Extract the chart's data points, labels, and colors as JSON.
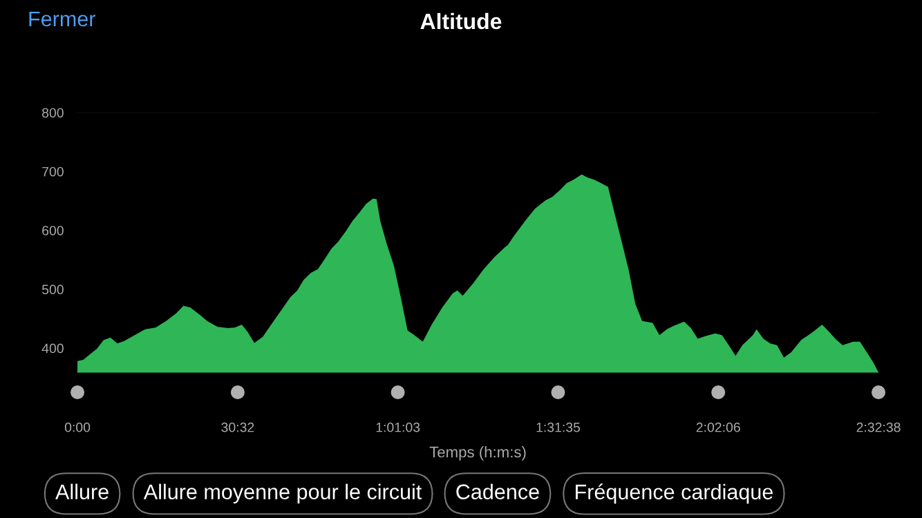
{
  "chart_data": {
    "type": "area",
    "title": "Altitude",
    "xlabel": "Temps (h:m:s)",
    "annotations": [
      "Fermer",
      "Allure",
      "Allure moyenne pour le circuit",
      "Cadence",
      "Fréquence cardiaque"
    ],
    "series": [
      {
        "color": "#2fb656",
        "x": [
          0,
          1.1,
          2.3,
          3.7,
          5.0,
          6.3,
          7.6,
          8.9,
          10.9,
          12.9,
          14.9,
          16.9,
          18.8,
          20.2,
          21.5,
          23.4,
          24.7,
          26.7,
          28.7,
          30.0,
          31.3,
          32.4,
          33.7,
          35.3,
          37.3,
          39.2,
          40.6,
          41.9,
          43.1,
          44.5,
          45.8,
          47.1,
          48.4,
          49.7,
          51.1,
          52.4,
          53.7,
          55.0,
          56.3,
          57.0,
          57.7,
          59.0,
          60.3,
          61.6,
          62.9,
          64.2,
          65.8,
          67.5,
          69.5,
          71.5,
          72.4,
          73.4,
          75.4,
          77.4,
          79.4,
          81.4,
          82.0,
          83.3,
          85.3,
          87.2,
          89.2,
          90.5,
          91.9,
          93.2,
          94.5,
          96.1,
          97.1,
          98.5,
          99.8,
          101.1,
          102.4,
          103.7,
          105.0,
          106.3,
          107.6,
          109.6,
          110.9,
          112.3,
          113.6,
          115.6,
          116.9,
          118.2,
          119.5,
          121.5,
          122.8,
          124.1,
          125.4,
          126.7,
          128.7,
          129.4,
          130.7,
          132.0,
          133.3,
          134.6,
          136.0,
          137.9,
          139.9,
          141.9,
          143.2,
          144.5,
          145.8,
          147.8,
          149.1,
          150.4,
          151.7,
          152.5
        ],
        "values": [
          378,
          380,
          389,
          399,
          414,
          418,
          408,
          412,
          422,
          432,
          435,
          446,
          459,
          472,
          469,
          456,
          446,
          436,
          434,
          435,
          440,
          428,
          409,
          419,
          445,
          469,
          487,
          498,
          516,
          528,
          534,
          551,
          569,
          581,
          598,
          616,
          630,
          645,
          654,
          653,
          616,
          575,
          540,
          487,
          430,
          422,
          411,
          440,
          469,
          493,
          498,
          489,
          510,
          534,
          554,
          571,
          575,
          592,
          616,
          637,
          651,
          657,
          668,
          680,
          686,
          695,
          690,
          686,
          680,
          674,
          627,
          581,
          534,
          475,
          446,
          443,
          422,
          432,
          438,
          445,
          434,
          416,
          420,
          425,
          422,
          405,
          387,
          405,
          422,
          432,
          416,
          408,
          405,
          384,
          393,
          414,
          426,
          440,
          428,
          415,
          405,
          411,
          411,
          393,
          375,
          361
        ]
      }
    ],
    "xlim": [
      0,
      152.633
    ],
    "ylim": [
      359,
      800
    ],
    "xticks": [
      {
        "value": 0,
        "label": "0:00"
      },
      {
        "value": 30.533,
        "label": "30:32"
      },
      {
        "value": 61.05,
        "label": "1:01:03"
      },
      {
        "value": 91.583,
        "label": "1:31:35"
      },
      {
        "value": 122.1,
        "label": "2:02:06"
      },
      {
        "value": 152.633,
        "label": "2:32:38"
      }
    ],
    "yticks": [
      400,
      500,
      600,
      700,
      800
    ],
    "grid": false,
    "legend": false
  }
}
